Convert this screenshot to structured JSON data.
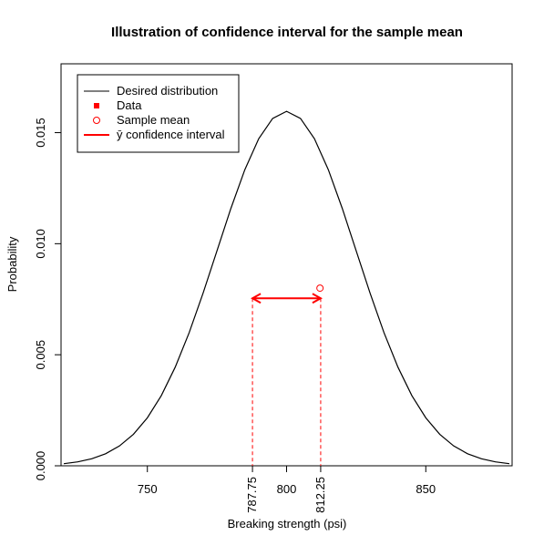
{
  "chart_data": {
    "type": "line",
    "title": "Illustration of confidence interval for the sample mean",
    "x_label": "Breaking strength (psi)",
    "y_label": "Probability",
    "xlim": [
      719,
      881
    ],
    "ylim": [
      0,
      0.0181
    ],
    "xticks": [
      750,
      800,
      850
    ],
    "yticks": [
      {
        "value": 0,
        "label": "0.000"
      },
      {
        "value": 0.005,
        "label": "0.005"
      },
      {
        "value": 0.01,
        "label": "0.010"
      },
      {
        "value": 0.015,
        "label": "0.015"
      }
    ],
    "series": [
      {
        "name": "Desired distribution",
        "color": "#000000",
        "x": [
          720,
          725,
          730,
          735,
          740,
          745,
          750,
          755,
          760,
          765,
          770,
          775,
          780,
          785,
          790,
          795,
          800,
          805,
          810,
          815,
          820,
          825,
          830,
          835,
          840,
          845,
          850,
          855,
          860,
          865,
          870,
          875,
          880
        ],
        "values": [
          9.54e-05,
          0.000177,
          0.000317,
          0.000543,
          0.000896,
          0.001419,
          0.00216,
          0.003158,
          0.00444,
          0.00599,
          0.00777,
          0.009679,
          0.01159,
          0.01333,
          0.01473,
          0.01564,
          0.01596,
          0.01564,
          0.01473,
          0.01333,
          0.01159,
          0.009679,
          0.00777,
          0.00599,
          0.00444,
          0.003158,
          0.00216,
          0.001419,
          0.000896,
          0.000543,
          0.000317,
          0.000177,
          9.54e-05
        ]
      },
      {
        "name": "Data",
        "color": "#ff0000",
        "x": [],
        "values": []
      },
      {
        "name": "Sample mean",
        "color": "#ff0000",
        "x": [
          812
        ],
        "values": [
          0.008
        ]
      }
    ],
    "interval": {
      "name": "ȳ confidence interval",
      "color": "#ff0000",
      "lower": 787.75,
      "upper": 812.25,
      "y": 0.00754
    }
  }
}
